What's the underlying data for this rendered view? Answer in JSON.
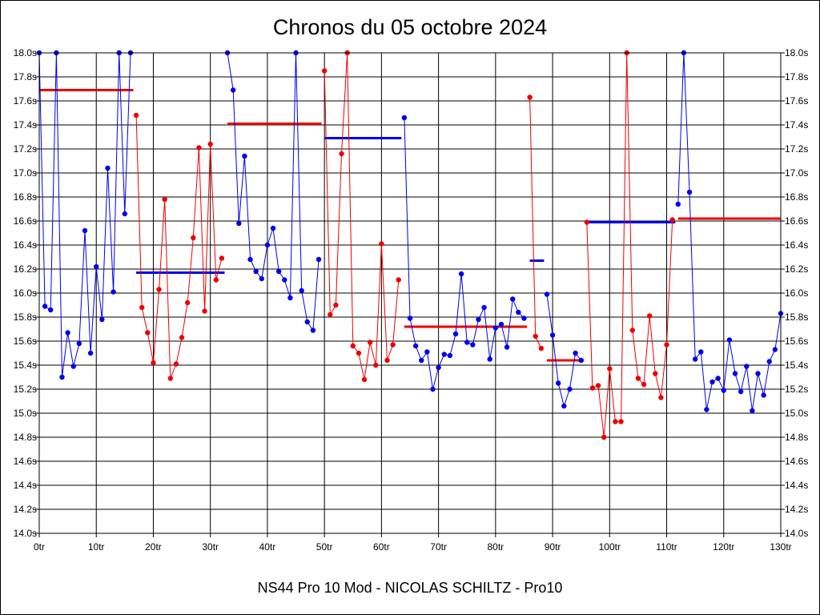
{
  "chart_data": {
    "type": "line",
    "title": "Chronos du 05 octobre 2024",
    "subtitle": "NS44 Pro 10 Mod - NICOLAS SCHILTZ - Pro10",
    "xlabel": "",
    "ylabel": "",
    "x_unit_suffix": "tr",
    "y_unit_suffix": "s",
    "xlim": [
      0,
      130
    ],
    "ylim": [
      14.0,
      18.0
    ],
    "x_ticks": [
      0,
      10,
      20,
      30,
      40,
      50,
      60,
      70,
      80,
      90,
      100,
      110,
      120,
      130
    ],
    "x_tick_labels": [
      "0tr",
      "10tr",
      "20tr",
      "30tr",
      "40tr",
      "50tr",
      "60tr",
      "70tr",
      "80tr",
      "90tr",
      "100tr",
      "110tr",
      "120tr",
      "130tr"
    ],
    "y_ticks": [
      14.0,
      14.2,
      14.4,
      14.6,
      14.8,
      15.0,
      15.2,
      15.4,
      15.6,
      15.8,
      16.0,
      16.2,
      16.4,
      16.6,
      16.8,
      17.0,
      17.2,
      17.4,
      17.6,
      17.8,
      18.0
    ],
    "y_tick_labels": [
      "14.0s",
      "14.2s",
      "14.4s",
      "14.6s",
      "14.8s",
      "15.0s",
      "15.2s",
      "15.4s",
      "15.6s",
      "15.8s",
      "16.0s",
      "16.2s",
      "16.4s",
      "16.6s",
      "16.8s",
      "17.0s",
      "17.2s",
      "17.4s",
      "17.6s",
      "17.8s",
      "18.0s"
    ],
    "grid": true,
    "colors": {
      "blue": "#0000ee",
      "red": "#ee0000"
    },
    "series": [
      {
        "color": "blue",
        "x": [
          0,
          1,
          2,
          3,
          4,
          5,
          6,
          7,
          8,
          9,
          10,
          11,
          12,
          13,
          14,
          15,
          16
        ],
        "values": [
          18.0,
          15.89,
          15.86,
          18.0,
          15.3,
          15.67,
          15.39,
          15.58,
          16.52,
          15.5,
          16.22,
          15.78,
          17.04,
          16.01,
          18.0,
          16.66,
          18.0
        ]
      },
      {
        "color": "red",
        "x": [
          17,
          18,
          19,
          20,
          21,
          22,
          23,
          24,
          25,
          26,
          27,
          28,
          29,
          30,
          31,
          32
        ],
        "values": [
          17.48,
          15.88,
          15.67,
          15.42,
          16.03,
          16.78,
          15.29,
          15.41,
          15.63,
          15.92,
          16.46,
          17.21,
          15.85,
          17.24,
          16.11,
          16.29
        ]
      },
      {
        "color": "blue",
        "x": [
          33,
          34,
          35,
          36,
          37,
          38,
          39,
          40,
          41,
          42,
          43,
          44,
          45,
          46,
          47,
          48,
          49
        ],
        "values": [
          18.0,
          17.69,
          16.58,
          17.14,
          16.28,
          16.18,
          16.12,
          16.4,
          16.54,
          16.18,
          16.11,
          15.96,
          18.0,
          16.02,
          15.76,
          15.69,
          16.28
        ]
      },
      {
        "color": "red",
        "x": [
          50,
          51,
          52,
          53,
          54,
          55,
          56,
          57,
          58,
          59,
          60,
          61,
          62,
          63
        ],
        "values": [
          17.85,
          15.82,
          15.9,
          17.16,
          18.0,
          15.56,
          15.5,
          15.28,
          15.59,
          15.4,
          16.41,
          15.44,
          15.57,
          16.11
        ]
      },
      {
        "color": "blue",
        "x": [
          64,
          65,
          66,
          67,
          68,
          69,
          70,
          71,
          72,
          73,
          74,
          75,
          76,
          77,
          78,
          79,
          80,
          81,
          82,
          83,
          84,
          85
        ],
        "values": [
          17.46,
          15.79,
          15.56,
          15.44,
          15.51,
          15.2,
          15.38,
          15.49,
          15.48,
          15.66,
          16.16,
          15.59,
          15.57,
          15.78,
          15.88,
          15.45,
          15.71,
          15.74,
          15.55,
          15.95,
          15.84,
          15.79
        ]
      },
      {
        "color": "red",
        "x": [
          86,
          87,
          88
        ],
        "values": [
          17.63,
          15.64,
          15.54
        ]
      },
      {
        "color": "blue",
        "x": [
          89,
          90,
          91,
          92,
          93,
          94,
          95
        ],
        "values": [
          15.99,
          15.65,
          15.25,
          15.06,
          15.2,
          15.5,
          15.44
        ]
      },
      {
        "color": "red",
        "x": [
          96,
          97,
          98,
          99,
          100,
          101,
          102,
          103,
          104,
          105,
          106,
          107,
          108,
          109,
          110,
          111
        ],
        "values": [
          16.59,
          15.21,
          15.23,
          14.8,
          15.37,
          14.93,
          14.93,
          18.0,
          15.69,
          15.29,
          15.24,
          15.81,
          15.33,
          15.13,
          15.57,
          16.61
        ]
      },
      {
        "color": "blue",
        "x": [
          112,
          113,
          114,
          115,
          116,
          117,
          118,
          119,
          120,
          121,
          122,
          123,
          124,
          125,
          126,
          127,
          128,
          129,
          130
        ],
        "values": [
          16.74,
          18.0,
          16.84,
          15.45,
          15.51,
          15.03,
          15.26,
          15.29,
          15.19,
          15.61,
          15.33,
          15.18,
          15.39,
          15.02,
          15.33,
          15.15,
          15.43,
          15.53,
          15.83
        ]
      }
    ],
    "averages": [
      {
        "color": "red",
        "x_start": 0,
        "x_end": 16.5,
        "value": 17.69
      },
      {
        "color": "blue",
        "x_start": 17,
        "x_end": 32.5,
        "value": 16.17
      },
      {
        "color": "red",
        "x_start": 33,
        "x_end": 49.5,
        "value": 17.41
      },
      {
        "color": "blue",
        "x_start": 50,
        "x_end": 63.5,
        "value": 17.29
      },
      {
        "color": "red",
        "x_start": 64,
        "x_end": 85.5,
        "value": 15.72
      },
      {
        "color": "blue",
        "x_start": 86,
        "x_end": 88.5,
        "value": 16.27
      },
      {
        "color": "red",
        "x_start": 89,
        "x_end": 95.5,
        "value": 15.44
      },
      {
        "color": "blue",
        "x_start": 96,
        "x_end": 111.5,
        "value": 16.59
      },
      {
        "color": "red",
        "x_start": 112,
        "x_end": 130,
        "value": 16.62
      }
    ]
  }
}
